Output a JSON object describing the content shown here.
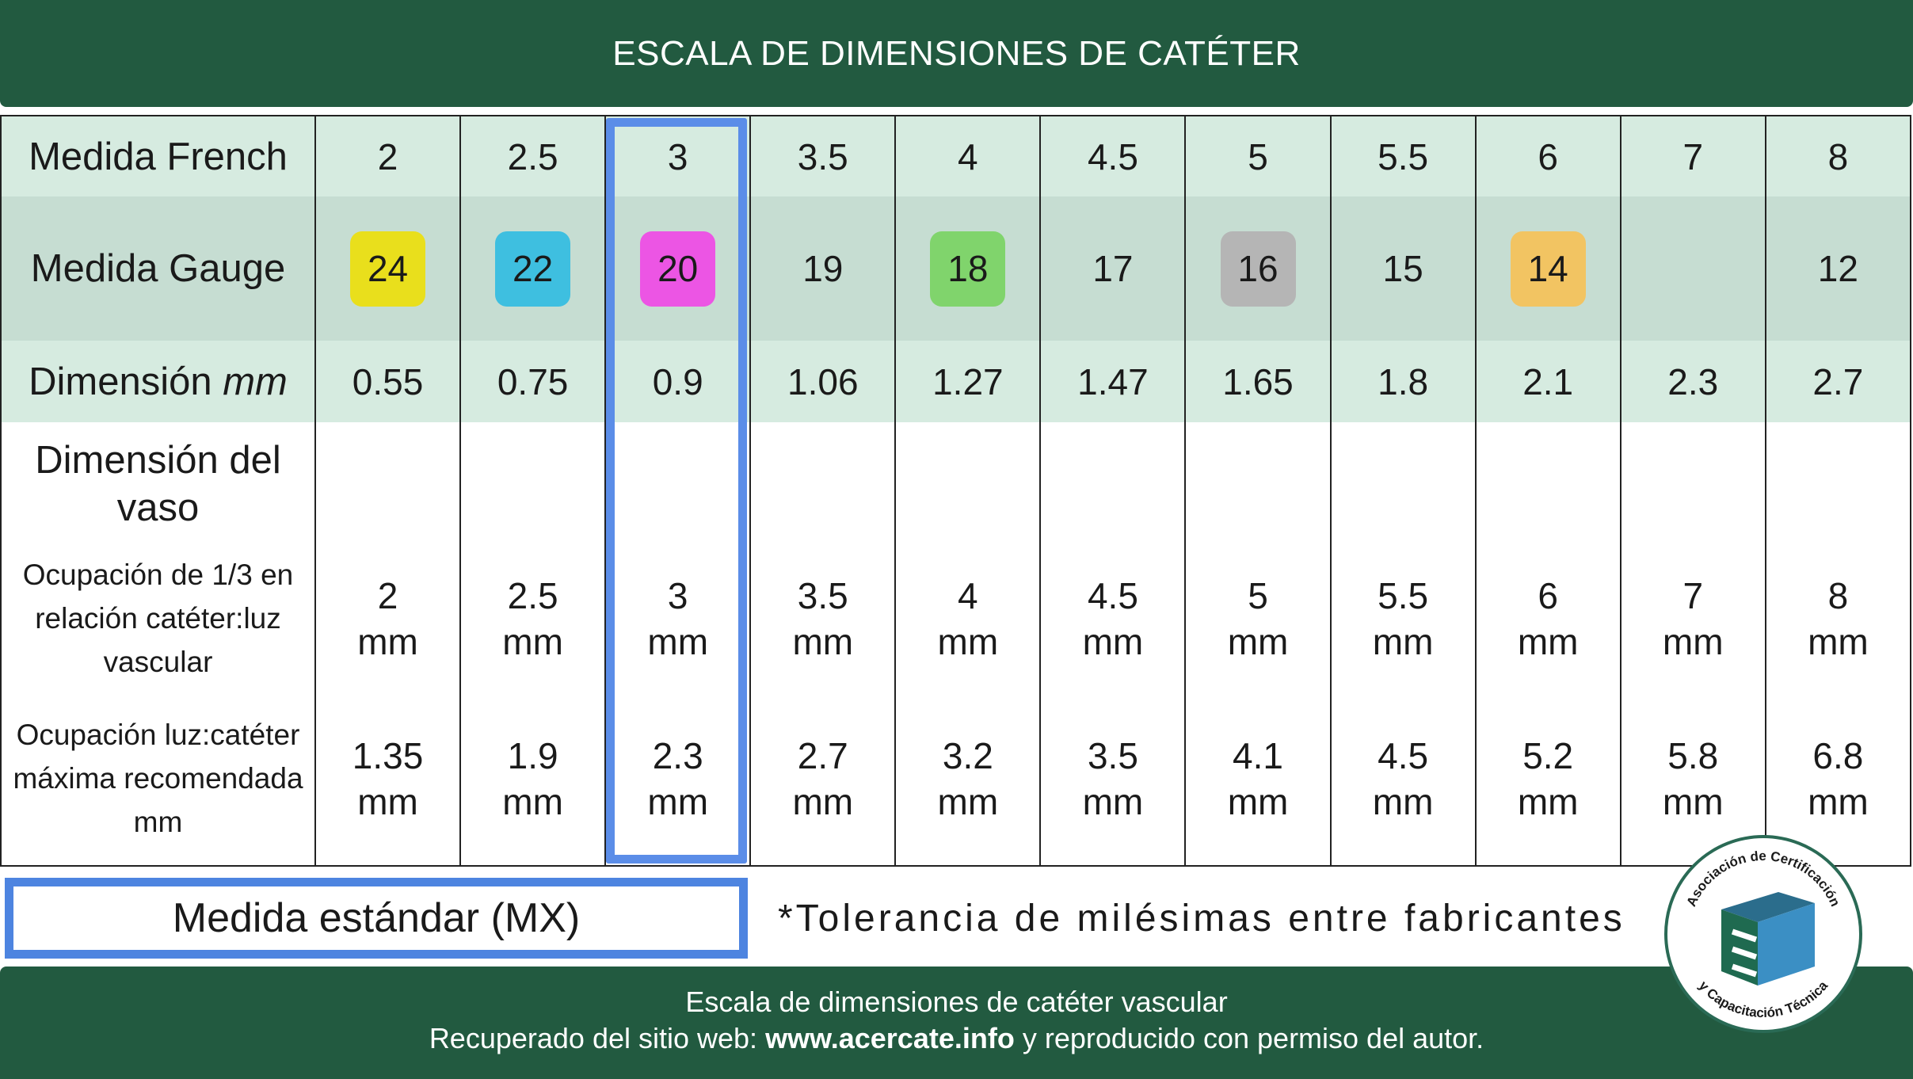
{
  "header": {
    "title": "ESCALA DE DIMENSIONES DE CATÉTER"
  },
  "table": {
    "french": {
      "label": "Medida French",
      "values": [
        2,
        2.5,
        3,
        3.5,
        4,
        4.5,
        5,
        5.5,
        6,
        7,
        8
      ]
    },
    "gauge": {
      "label": "Medida Gauge",
      "values": [
        24,
        22,
        20,
        19,
        18,
        17,
        16,
        15,
        14,
        null,
        12
      ],
      "colors": [
        "#e9df1c",
        "#3ebfe0",
        "#ec55e4",
        null,
        "#80d46c",
        null,
        "#b5b5b5",
        null,
        "#f2c462",
        null,
        null
      ]
    },
    "dimension": {
      "label": "Dimensión",
      "unit": "mm",
      "values": [
        0.55,
        0.75,
        0.9,
        1.06,
        1.27,
        1.47,
        1.65,
        1.8,
        2.1,
        2.3,
        2.7
      ]
    },
    "vessel": {
      "heading": "Dimensión del vaso",
      "rows": [
        {
          "label": "Ocupación de 1/3 en relación catéter:luz vascular",
          "values": [
            "2 mm",
            "2.5 mm",
            "3 mm",
            "3.5 mm",
            "4 mm",
            "4.5 mm",
            "5 mm",
            "5.5 mm",
            "6 mm",
            "7 mm",
            "8 mm"
          ]
        },
        {
          "label": "Ocupación luz:catéter máxima recomendada mm",
          "values": [
            "1.35 mm",
            "1.9 mm",
            "2.3 mm",
            "2.7 mm",
            "3.2 mm",
            "3.5 mm",
            "4.1 mm",
            "4.5 mm",
            "5.2 mm",
            "5.8 mm",
            "6.8 mm"
          ]
        }
      ]
    }
  },
  "legend": {
    "standard": "Medida estándar (MX)",
    "note": "*Tolerancia de milésimas entre fabricantes"
  },
  "footer": {
    "line1": "Escala de dimensiones de catéter vascular",
    "line2": {
      "prefix": "Recuperado del sitio web: ",
      "link": "www.acercate.info",
      "suffix": " y reproducido con permiso del autor."
    }
  },
  "logo": {
    "top": "Asociación de Certificación",
    "bottom": "y Capacitación Técnica"
  }
}
